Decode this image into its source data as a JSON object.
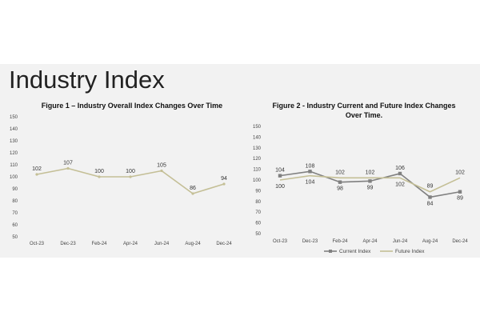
{
  "page": {
    "title": "Industry Index"
  },
  "colors": {
    "background": "#f2f2f2",
    "current": "#808080",
    "future": "#c4bf96"
  },
  "chart_data": [
    {
      "type": "line",
      "title": "Figure 1 – Industry Overall Index Changes Over Time",
      "categories": [
        "Oct-23",
        "Dec-23",
        "Feb-24",
        "Apr-24",
        "Jun-24",
        "Aug-24",
        "Dec-24"
      ],
      "ylim": [
        50,
        150
      ],
      "yticks": [
        50,
        60,
        70,
        80,
        90,
        100,
        110,
        120,
        130,
        140,
        150
      ],
      "grid": false,
      "legend": "none",
      "series": [
        {
          "values": [
            102,
            107,
            100,
            100,
            105,
            86,
            94
          ],
          "color": "#c4bf96"
        }
      ]
    },
    {
      "type": "line",
      "title": "Figure 2 - Industry Current and Future Index Changes Over Time.",
      "categories": [
        "Oct-23",
        "Dec-23",
        "Feb-24",
        "Apr-24",
        "Jun-24",
        "Aug-24",
        "Dec-24"
      ],
      "ylim": [
        50,
        150
      ],
      "yticks": [
        50,
        60,
        70,
        80,
        90,
        100,
        110,
        120,
        130,
        140,
        150
      ],
      "grid": false,
      "legend": "bottom",
      "series": [
        {
          "name": "Current Index",
          "values": [
            104,
            108,
            98,
            99,
            106,
            84,
            89
          ],
          "color": "#808080",
          "marker": "square"
        },
        {
          "name": "Future Index",
          "values": [
            100,
            104,
            102,
            102,
            102,
            89,
            102
          ],
          "color": "#c4bf96",
          "marker": "none"
        }
      ]
    }
  ]
}
